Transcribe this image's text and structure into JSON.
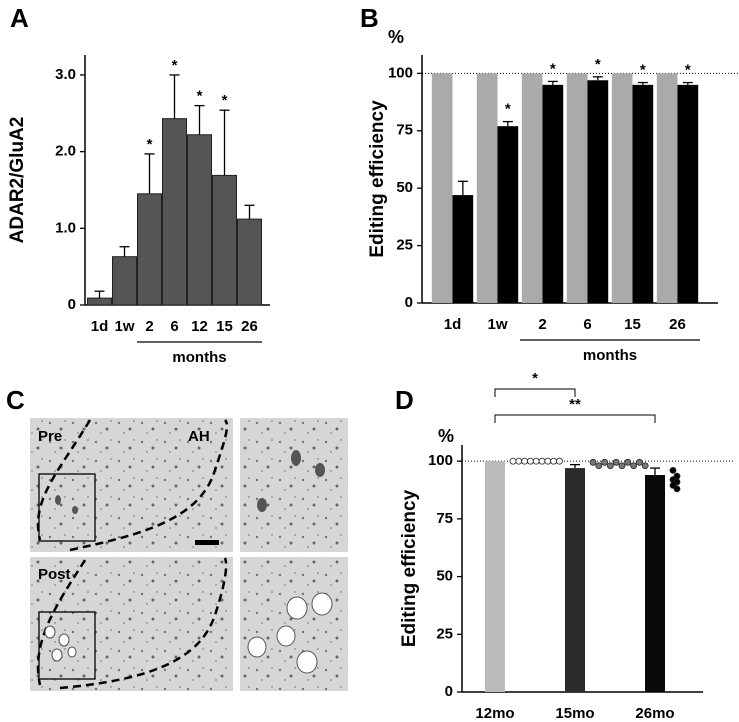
{
  "chart_data": [
    {
      "type": "bar",
      "panel_label": "A",
      "y_label": "ADAR2/GluA2",
      "categories": [
        "1d",
        "1w",
        "2",
        "6",
        "12",
        "15",
        "26"
      ],
      "values": [
        0.09,
        0.63,
        1.45,
        2.43,
        2.22,
        1.69,
        1.12
      ],
      "errors": [
        0.09,
        0.13,
        0.52,
        0.57,
        0.38,
        0.85,
        0.18
      ],
      "color": "#555555",
      "significance": [
        {
          "index": 2,
          "label": "*"
        },
        {
          "index": 3,
          "label": "*"
        },
        {
          "index": 4,
          "label": "*"
        },
        {
          "index": 5,
          "label": "*"
        }
      ],
      "group_label": {
        "label": "months",
        "from": 2,
        "to": 6
      },
      "ylim": [
        0,
        3.26
      ],
      "yticks": [
        0,
        {
          "value": 1,
          "label": "1.0"
        },
        {
          "value": 2,
          "label": "2.0"
        },
        {
          "value": 3,
          "label": "3.0"
        }
      ]
    },
    {
      "type": "grouped_bar",
      "panel_label": "B",
      "y_label": "Editing efficiency",
      "y_unit": "%",
      "categories": [
        "1d",
        "1w",
        "2",
        "6",
        "15",
        "26"
      ],
      "series": [
        {
          "color": "#aaaaaa",
          "values": [
            100,
            100,
            100,
            100,
            100,
            100
          ]
        },
        {
          "color": "#000000",
          "values": [
            47,
            77,
            95,
            97,
            95,
            95
          ],
          "errors": [
            6,
            2,
            1.5,
            1.5,
            1,
            1
          ],
          "significance": [
            {
              "index": 1,
              "label": "*"
            },
            {
              "index": 2,
              "label": "*"
            },
            {
              "index": 3,
              "label": "*"
            },
            {
              "index": 4,
              "label": "*"
            },
            {
              "index": 5,
              "label": "*"
            }
          ]
        }
      ],
      "reference_line": 100,
      "group_label": {
        "label": "months",
        "from": 2,
        "to": 5
      },
      "ylim": [
        0,
        108
      ],
      "yticks": [
        0,
        25,
        50,
        75,
        100
      ]
    },
    {
      "type": "bar_points",
      "panel_label": "D",
      "y_label": "Editing efficiency",
      "y_unit": "%",
      "categories": [
        "12mo",
        "15mo",
        "26mo"
      ],
      "values": [
        100,
        97,
        94
      ],
      "errors": [
        0,
        1.5,
        3
      ],
      "colors": [
        "#bbbbbb",
        "#2b2b2b",
        "#0a0a0a"
      ],
      "points": [
        {
          "fill": "#ffffff",
          "values": [
            100,
            100,
            100,
            100,
            100,
            100,
            100,
            100,
            100
          ]
        },
        {
          "fill": "#777777",
          "values": [
            99.5,
            98,
            99.5,
            98,
            99.5,
            98,
            99.5,
            98,
            99.5,
            98
          ]
        },
        {
          "fill": "#000000",
          "values": [
            96,
            93.5,
            92,
            91,
            89.5,
            88
          ]
        }
      ],
      "brackets": [
        {
          "from": 0,
          "to": 1,
          "label": "*"
        },
        {
          "from": 0,
          "to": 2,
          "label": "**"
        }
      ],
      "reference_line": 100,
      "ylim": [
        0,
        107
      ],
      "yticks": [
        0,
        25,
        50,
        75,
        100
      ]
    }
  ],
  "image_panel": {
    "panel_label": "C",
    "labels": [
      "Pre",
      "AH",
      "Post"
    ]
  }
}
